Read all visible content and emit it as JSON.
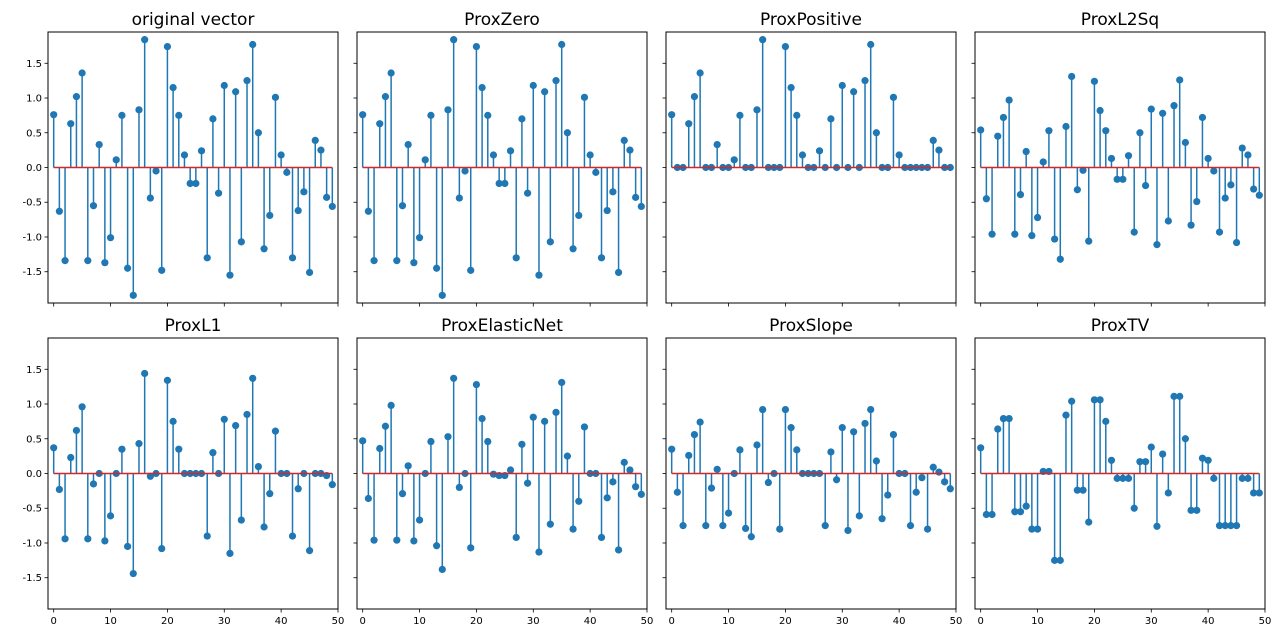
{
  "figure": {
    "original_label": "original vector",
    "prox_labels": [
      "ProxZero",
      "ProxPositive",
      "ProxL2Sq",
      "ProxL1",
      "ProxElasticNet",
      "ProxSlope",
      "ProxTV"
    ]
  },
  "chart_data": [
    {
      "type": "stem",
      "title": "original vector",
      "xlim": [
        -1,
        50
      ],
      "ylim": [
        -1.95,
        1.95
      ],
      "xticks": [
        0,
        10,
        20,
        30,
        40,
        50
      ],
      "yticks": [
        -1.5,
        -1.0,
        -0.5,
        0.0,
        0.5,
        1.0,
        1.5
      ],
      "show_xtick_labels": false,
      "show_ytick_labels": true,
      "baseline": 0,
      "values": [
        0.76,
        -0.63,
        -1.34,
        0.63,
        1.02,
        1.36,
        -1.34,
        -0.55,
        0.33,
        -1.37,
        -1.01,
        0.11,
        0.75,
        -1.45,
        -1.84,
        0.83,
        1.84,
        -0.44,
        -0.05,
        -1.48,
        1.74,
        1.15,
        0.75,
        0.18,
        -0.23,
        -0.23,
        0.24,
        -1.3,
        0.7,
        -0.37,
        1.18,
        -1.55,
        1.09,
        -1.07,
        1.25,
        1.77,
        0.5,
        -1.17,
        -0.69,
        1.01,
        0.18,
        -0.07,
        -1.3,
        -0.62,
        -0.35,
        -1.51,
        0.39,
        0.25,
        -0.43,
        -0.56
      ]
    },
    {
      "type": "stem",
      "title": "ProxZero",
      "xlim": [
        -1,
        50
      ],
      "ylim": [
        -1.95,
        1.95
      ],
      "xticks": [
        0,
        10,
        20,
        30,
        40,
        50
      ],
      "yticks": [
        -1.5,
        -1.0,
        -0.5,
        0.0,
        0.5,
        1.0,
        1.5
      ],
      "show_xtick_labels": false,
      "show_ytick_labels": false,
      "baseline": 0,
      "values": [
        0.76,
        -0.63,
        -1.34,
        0.63,
        1.02,
        1.36,
        -1.34,
        -0.55,
        0.33,
        -1.37,
        -1.01,
        0.11,
        0.75,
        -1.45,
        -1.84,
        0.83,
        1.84,
        -0.44,
        -0.05,
        -1.48,
        1.74,
        1.15,
        0.75,
        0.18,
        -0.23,
        -0.23,
        0.24,
        -1.3,
        0.7,
        -0.37,
        1.18,
        -1.55,
        1.09,
        -1.07,
        1.25,
        1.77,
        0.5,
        -1.17,
        -0.69,
        1.01,
        0.18,
        -0.07,
        -1.3,
        -0.62,
        -0.35,
        -1.51,
        0.39,
        0.25,
        -0.43,
        -0.56
      ]
    },
    {
      "type": "stem",
      "title": "ProxPositive",
      "xlim": [
        -1,
        50
      ],
      "ylim": [
        -1.95,
        1.95
      ],
      "xticks": [
        0,
        10,
        20,
        30,
        40,
        50
      ],
      "yticks": [
        -1.5,
        -1.0,
        -0.5,
        0.0,
        0.5,
        1.0,
        1.5
      ],
      "show_xtick_labels": false,
      "show_ytick_labels": false,
      "baseline": 0,
      "values": [
        0.76,
        0,
        0,
        0.63,
        1.02,
        1.36,
        0,
        0,
        0.33,
        0,
        0,
        0.11,
        0.75,
        0,
        0,
        0.83,
        1.84,
        0,
        0,
        0,
        1.74,
        1.15,
        0.75,
        0.18,
        0,
        0,
        0.24,
        0,
        0.7,
        0,
        1.18,
        0,
        1.09,
        0,
        1.25,
        1.77,
        0.5,
        0,
        0,
        1.01,
        0.18,
        0,
        0,
        0,
        0,
        0,
        0.39,
        0.25,
        0,
        0
      ]
    },
    {
      "type": "stem",
      "title": "ProxL2Sq",
      "xlim": [
        -1,
        50
      ],
      "ylim": [
        -1.95,
        1.95
      ],
      "xticks": [
        0,
        10,
        20,
        30,
        40,
        50
      ],
      "yticks": [
        -1.5,
        -1.0,
        -0.5,
        0.0,
        0.5,
        1.0,
        1.5
      ],
      "show_xtick_labels": false,
      "show_ytick_labels": false,
      "baseline": 0,
      "values": [
        0.54,
        -0.45,
        -0.96,
        0.45,
        0.72,
        0.97,
        -0.96,
        -0.39,
        0.23,
        -0.98,
        -0.72,
        0.08,
        0.53,
        -1.03,
        -1.32,
        0.59,
        1.31,
        -0.32,
        -0.04,
        -1.06,
        1.24,
        0.82,
        0.53,
        0.13,
        -0.17,
        -0.17,
        0.17,
        -0.93,
        0.5,
        -0.26,
        0.84,
        -1.11,
        0.78,
        -0.77,
        0.89,
        1.26,
        0.36,
        -0.83,
        -0.49,
        0.72,
        0.13,
        -0.05,
        -0.93,
        -0.44,
        -0.25,
        -1.08,
        0.28,
        0.18,
        -0.31,
        -0.4
      ]
    },
    {
      "type": "stem",
      "title": "ProxL1",
      "xlim": [
        -1,
        50
      ],
      "ylim": [
        -1.95,
        1.95
      ],
      "xticks": [
        0,
        10,
        20,
        30,
        40,
        50
      ],
      "yticks": [
        -1.5,
        -1.0,
        -0.5,
        0.0,
        0.5,
        1.0,
        1.5
      ],
      "show_xtick_labels": true,
      "show_ytick_labels": true,
      "baseline": 0,
      "values": [
        0.37,
        -0.23,
        -0.94,
        0.23,
        0.62,
        0.96,
        -0.94,
        -0.15,
        0,
        -0.97,
        -0.61,
        0,
        0.35,
        -1.05,
        -1.44,
        0.43,
        1.44,
        -0.04,
        0,
        -1.08,
        1.34,
        0.75,
        0.35,
        0,
        0,
        0,
        0,
        -0.9,
        0.3,
        0,
        0.78,
        -1.15,
        0.69,
        -0.67,
        0.85,
        1.37,
        0.1,
        -0.77,
        -0.29,
        0.61,
        0,
        0,
        -0.9,
        -0.22,
        0,
        -1.11,
        0,
        0,
        -0.03,
        -0.16
      ]
    },
    {
      "type": "stem",
      "title": "ProxElasticNet",
      "xlim": [
        -1,
        50
      ],
      "ylim": [
        -1.95,
        1.95
      ],
      "xticks": [
        0,
        10,
        20,
        30,
        40,
        50
      ],
      "yticks": [
        -1.5,
        -1.0,
        -0.5,
        0.0,
        0.5,
        1.0,
        1.5
      ],
      "show_xtick_labels": true,
      "show_ytick_labels": false,
      "baseline": 0,
      "values": [
        0.47,
        -0.36,
        -0.96,
        0.36,
        0.68,
        0.98,
        -0.96,
        -0.29,
        0.11,
        -0.97,
        -0.67,
        0,
        0.46,
        -1.04,
        -1.38,
        0.53,
        1.37,
        -0.2,
        0,
        -1.07,
        1.28,
        0.79,
        0.46,
        -0.01,
        -0.03,
        -0.03,
        0.05,
        -0.92,
        0.42,
        -0.14,
        0.81,
        -1.13,
        0.75,
        -0.73,
        0.88,
        1.31,
        0.25,
        -0.8,
        -0.4,
        0.67,
        0,
        0,
        -0.92,
        -0.35,
        -0.12,
        -1.1,
        0.16,
        0.05,
        -0.19,
        -0.3
      ]
    },
    {
      "type": "stem",
      "title": "ProxSlope",
      "xlim": [
        -1,
        50
      ],
      "ylim": [
        -1.95,
        1.95
      ],
      "xticks": [
        0,
        10,
        20,
        30,
        40,
        50
      ],
      "yticks": [
        -1.5,
        -1.0,
        -0.5,
        0.0,
        0.5,
        1.0,
        1.5
      ],
      "show_xtick_labels": true,
      "show_ytick_labels": false,
      "baseline": 0,
      "values": [
        0.35,
        -0.27,
        -0.75,
        0.26,
        0.56,
        0.74,
        -0.75,
        -0.21,
        0.06,
        -0.75,
        -0.57,
        0,
        0.34,
        -0.79,
        -0.91,
        0.41,
        0.92,
        -0.13,
        0,
        -0.8,
        0.92,
        0.66,
        0.34,
        0,
        0,
        0,
        0,
        -0.75,
        0.31,
        -0.09,
        0.66,
        -0.82,
        0.6,
        -0.61,
        0.72,
        0.92,
        0.18,
        -0.65,
        -0.31,
        0.56,
        0,
        0,
        -0.75,
        -0.27,
        -0.06,
        -0.8,
        0.09,
        0.02,
        -0.12,
        -0.22
      ]
    },
    {
      "type": "stem",
      "title": "ProxTV",
      "xlim": [
        -1,
        50
      ],
      "ylim": [
        -1.95,
        1.95
      ],
      "xticks": [
        0,
        10,
        20,
        30,
        40,
        50
      ],
      "yticks": [
        -1.5,
        -1.0,
        -0.5,
        0.0,
        0.5,
        1.0,
        1.5
      ],
      "show_xtick_labels": true,
      "show_ytick_labels": false,
      "baseline": 0,
      "values": [
        0.37,
        -0.59,
        -0.59,
        0.64,
        0.79,
        0.79,
        -0.55,
        -0.55,
        -0.47,
        -0.8,
        -0.8,
        0.03,
        0.03,
        -1.25,
        -1.25,
        0.84,
        1.04,
        -0.24,
        -0.24,
        -0.7,
        1.06,
        1.06,
        0.75,
        0.19,
        -0.07,
        -0.07,
        -0.07,
        -0.5,
        0.17,
        0.17,
        0.38,
        -0.76,
        0.28,
        -0.28,
        1.11,
        1.11,
        0.5,
        -0.53,
        -0.53,
        0.22,
        0.19,
        -0.07,
        -0.75,
        -0.75,
        -0.75,
        -0.75,
        -0.07,
        -0.07,
        -0.28,
        -0.28
      ]
    }
  ]
}
